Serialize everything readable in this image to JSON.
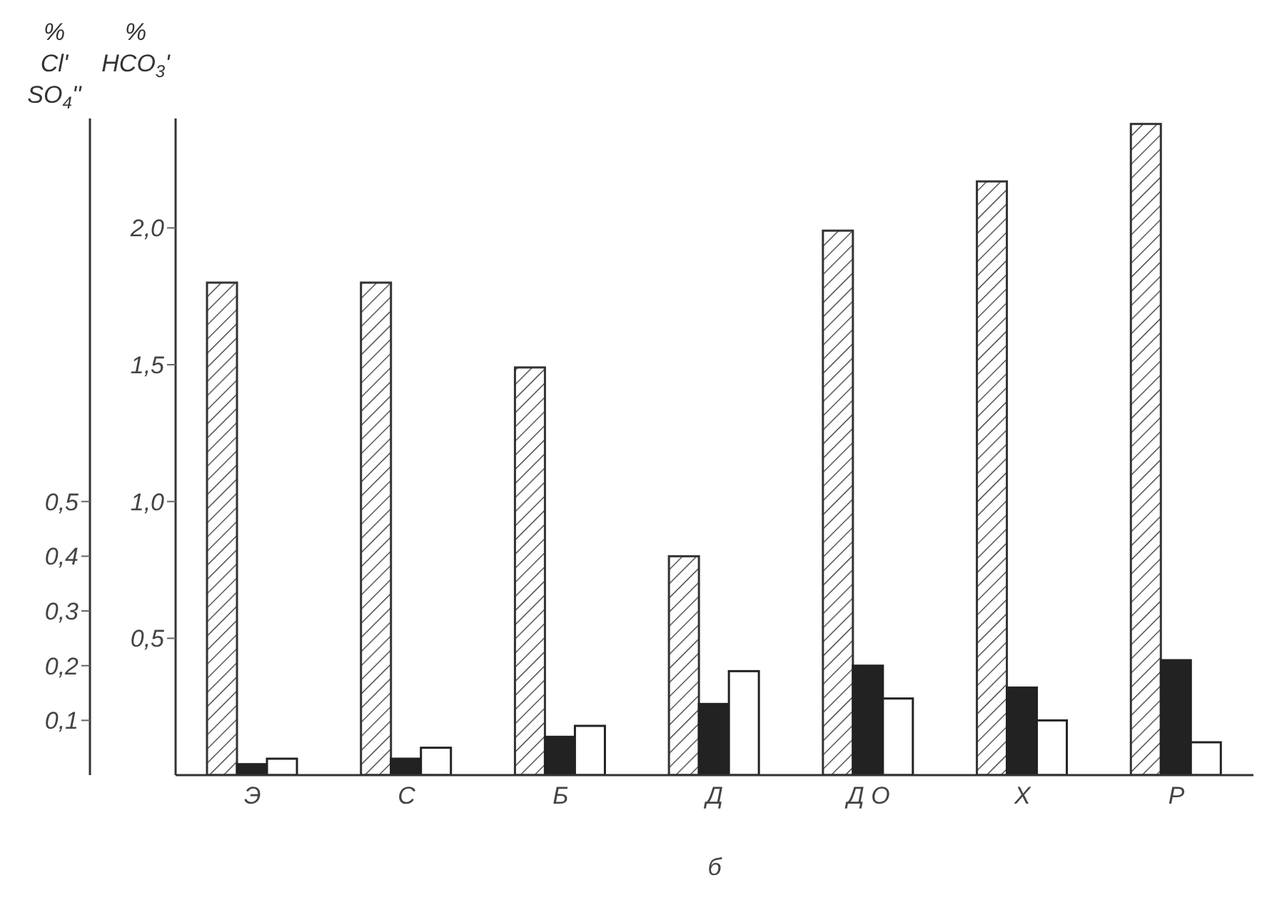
{
  "chart_data": {
    "type": "bar",
    "xlabel": "б",
    "ylabel": "% HCO$_{3}$'",
    "y2label": "% Cl' SO$_{4}$''",
    "categories": [
      "Э",
      "С",
      "Б",
      "Д",
      "Д О",
      "Х",
      "Р"
    ],
    "series": [
      {
        "color": "#333333",
        "values": [
          1.8,
          1.8,
          1.49,
          0.8,
          1.99,
          2.17,
          2.38
        ]
      },
      {
        "color": "#222222",
        "axis": "y2",
        "values": [
          0.02,
          0.03,
          0.07,
          0.13,
          0.2,
          0.16,
          0.21
        ]
      },
      {
        "color": "#ffffff",
        "axis": "y2",
        "values": [
          0.03,
          0.05,
          0.09,
          0.19,
          0.14,
          0.1,
          0.06
        ]
      }
    ],
    "ylim": [
      0,
      2.4
    ],
    "yticks": [
      {
        "value": 0.5,
        "label": "0,5"
      },
      {
        "value": 1.0,
        "label": "1,0"
      },
      {
        "value": 1.5,
        "label": "1,5"
      },
      {
        "value": 2.0,
        "label": "2,0"
      }
    ],
    "y2lim": [
      0,
      1.2
    ],
    "y2ticks": [
      {
        "value": 0.1,
        "label": "0,1"
      },
      {
        "value": 0.2,
        "label": "0,2"
      },
      {
        "value": 0.3,
        "label": "0,3"
      },
      {
        "value": 0.4,
        "label": "0,4"
      },
      {
        "value": 0.5,
        "label": "0,5"
      }
    ],
    "grid": false,
    "legend": false
  }
}
